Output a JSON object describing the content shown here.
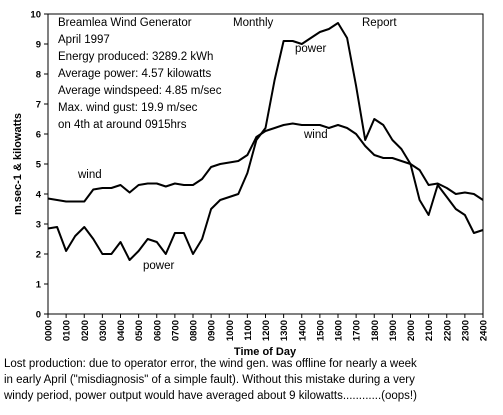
{
  "chart_data": {
    "type": "line",
    "annotations": [
      "Breamlea Wind Generator",
      "April 1997",
      "Energy produced: 3289.2 kWh",
      "Average power: 4.57 kilowatts",
      "Average windspeed: 4.85 m/sec",
      "Max. wind gust:  19.9 m/sec",
      " on 4th at around 0915hrs",
      "Monthly",
      "Report",
      "power",
      "wind",
      "wind",
      "power"
    ],
    "x_label": "Time of Day",
    "y_label": "m.sec-1 & kilowatts",
    "caption": [
      "Lost production: due to operator error, the wind gen. was offline for nearly a week",
      "in early April (\"misdiagnosis\" of a simple fault). Without this mistake during a very",
      "windy period, power output would have averaged about 9 kilowatts............(oops!)"
    ],
    "x": [
      0,
      0.5,
      1,
      1.5,
      2,
      2.5,
      3,
      3.5,
      4,
      4.5,
      5,
      5.5,
      6,
      6.5,
      7,
      7.5,
      8,
      8.5,
      9,
      9.5,
      10,
      10.5,
      11,
      11.5,
      12,
      12.5,
      13,
      13.5,
      14,
      14.5,
      15,
      15.5,
      16,
      16.5,
      17,
      17.5,
      18,
      18.5,
      19,
      19.5,
      20,
      20.5,
      21,
      21.5,
      22,
      22.5,
      23,
      23.5,
      24
    ],
    "series": [
      {
        "name": "wind",
        "color": "#000000",
        "values": [
          3.85,
          3.8,
          3.75,
          3.75,
          3.75,
          4.15,
          4.2,
          4.2,
          4.3,
          4.05,
          4.3,
          4.35,
          4.35,
          4.25,
          4.35,
          4.3,
          4.3,
          4.5,
          4.9,
          5.0,
          5.05,
          5.1,
          5.3,
          5.9,
          6.1,
          6.2,
          6.3,
          6.35,
          6.3,
          6.3,
          6.3,
          6.2,
          6.3,
          6.2,
          6.0,
          5.6,
          5.3,
          5.2,
          5.2,
          5.1,
          5.0,
          4.8,
          4.3,
          4.35,
          4.2,
          4.0,
          4.05,
          4.0,
          3.8
        ]
      },
      {
        "name": "power",
        "color": "#000000",
        "values": [
          2.85,
          2.9,
          2.1,
          2.6,
          2.9,
          2.5,
          2.0,
          2.0,
          2.4,
          1.8,
          2.1,
          2.5,
          2.4,
          2.0,
          2.7,
          2.7,
          2.0,
          2.5,
          3.5,
          3.8,
          3.9,
          4.0,
          4.7,
          5.8,
          6.2,
          7.8,
          9.1,
          9.1,
          9.0,
          9.2,
          9.4,
          9.5,
          9.7,
          9.2,
          7.6,
          5.8,
          6.5,
          6.3,
          5.8,
          5.5,
          5.0,
          3.8,
          3.3,
          4.3,
          3.9,
          3.5,
          3.3,
          2.7,
          2.8
        ]
      }
    ],
    "xlim": [
      0,
      24
    ],
    "xticks": [
      {
        "value": 0,
        "label": "0000"
      },
      {
        "value": 1,
        "label": "0100"
      },
      {
        "value": 2,
        "label": "0200"
      },
      {
        "value": 3,
        "label": "0300"
      },
      {
        "value": 4,
        "label": "0400"
      },
      {
        "value": 5,
        "label": "0500"
      },
      {
        "value": 6,
        "label": "0600"
      },
      {
        "value": 7,
        "label": "0700"
      },
      {
        "value": 8,
        "label": "0800"
      },
      {
        "value": 9,
        "label": "0900"
      },
      {
        "value": 10,
        "label": "1000"
      },
      {
        "value": 11,
        "label": "1100"
      },
      {
        "value": 12,
        "label": "1200"
      },
      {
        "value": 13,
        "label": "1300"
      },
      {
        "value": 14,
        "label": "1400"
      },
      {
        "value": 15,
        "label": "1500"
      },
      {
        "value": 16,
        "label": "1600"
      },
      {
        "value": 17,
        "label": "1700"
      },
      {
        "value": 18,
        "label": "1800"
      },
      {
        "value": 19,
        "label": "1900"
      },
      {
        "value": 20,
        "label": "2000"
      },
      {
        "value": 21,
        "label": "2100"
      },
      {
        "value": 22,
        "label": "2200"
      },
      {
        "value": 23,
        "label": "2300"
      },
      {
        "value": 24,
        "label": "2400"
      }
    ],
    "ylim": [
      0,
      10
    ],
    "yticks": [
      0,
      1,
      2,
      3,
      4,
      5,
      6,
      7,
      8,
      9,
      10
    ],
    "grid": false
  }
}
